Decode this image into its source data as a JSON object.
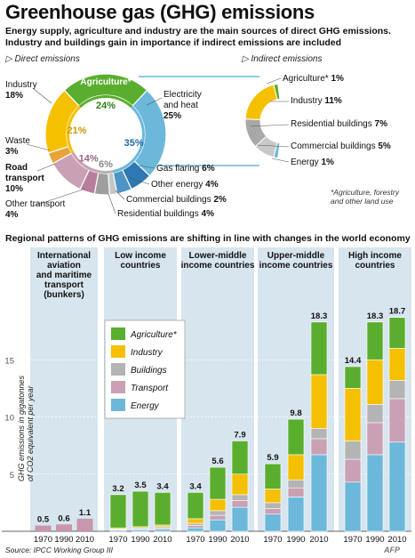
{
  "title": "Greenhouse gas (GHG) emissions",
  "subtitle_line1": "Energy supply, agriculture and industry are the main sources of direct GHG emissions.",
  "subtitle_line2": "Industry and buildings gain in importance if indirect emissions are included",
  "direct_heading": "Direct emissions",
  "indirect_heading": "Indirect emissions",
  "direct_labels": {
    "industry": {
      "name": "Industry",
      "pct": "18%"
    },
    "waste": {
      "name": "Waste",
      "pct": "3%"
    },
    "road": {
      "name": "Road",
      "name2": "transport",
      "pct": "10%"
    },
    "other_transport": {
      "name": "Other transport",
      "pct": "4%"
    },
    "agriculture": "Agriculture*",
    "electricity": {
      "name": "Electricity",
      "name2": "and heat",
      "pct": "25%"
    },
    "gas_flaring": {
      "name": "Gas flaring",
      "pct": "6%"
    },
    "other_energy": {
      "name": "Other energy",
      "pct": "4%"
    },
    "commercial": {
      "name": "Commercial buildings",
      "pct": "2%"
    },
    "residential": {
      "name": "Residential buildings",
      "pct": "4%"
    }
  },
  "ring_labels": {
    "agri": "24%",
    "industry": "21%",
    "transport": "14%",
    "buildings": "6%",
    "energy": "35%"
  },
  "indirect_labels": {
    "agriculture": {
      "name": "Agriculture*",
      "pct": "1%"
    },
    "industry": {
      "name": "Industry",
      "pct": "11%"
    },
    "residential": {
      "name": "Residential buildings",
      "pct": "7%"
    },
    "commercial": {
      "name": "Commercial buildings",
      "pct": "5%"
    },
    "energy": {
      "name": "Energy",
      "pct": "1%"
    }
  },
  "footnote": "*Agriculture, forestry and other land use",
  "section2_title": "Regional patterns of GHG emissions are shifting in line with changes in the world economy",
  "ylabel_line1": "GHG emissions in gigatonnes",
  "ylabel_line2": "of CO2 equivalent per year",
  "source": "Source: IPCC Working Group III",
  "afp": "AFP",
  "colors": {
    "agriculture": "#5aae2e",
    "industry": "#f5c000",
    "buildings": "#b4b4b4",
    "transport": "#c9a0b4",
    "energy": "#6bb8db",
    "electricity": "#6bb8db",
    "energy_dark": "#2e78b4",
    "waste": "#e8a43a",
    "panel_bg": "#d7e5ee",
    "total_bar": "#c896ad"
  },
  "chart_data": [
    {
      "type": "pie",
      "title": "Direct emissions",
      "slices": [
        {
          "label": "Agriculture*",
          "value": 24
        },
        {
          "label": "Electricity and heat",
          "value": 25
        },
        {
          "label": "Gas flaring",
          "value": 6
        },
        {
          "label": "Other energy",
          "value": 4
        },
        {
          "label": "Commercial buildings",
          "value": 2
        },
        {
          "label": "Residential buildings",
          "value": 4
        },
        {
          "label": "Other transport",
          "value": 4
        },
        {
          "label": "Road transport",
          "value": 10
        },
        {
          "label": "Waste",
          "value": 3
        },
        {
          "label": "Industry",
          "value": 18
        }
      ],
      "groups": [
        {
          "label": "Agriculture",
          "value": 24
        },
        {
          "label": "Energy",
          "value": 35
        },
        {
          "label": "Buildings",
          "value": 6
        },
        {
          "label": "Transport",
          "value": 14
        },
        {
          "label": "Industry",
          "value": 21
        }
      ]
    },
    {
      "type": "pie",
      "title": "Indirect emissions",
      "slices": [
        {
          "label": "Agriculture*",
          "value": 1
        },
        {
          "label": "Industry",
          "value": 11
        },
        {
          "label": "Residential buildings",
          "value": 7
        },
        {
          "label": "Commercial buildings",
          "value": 5
        },
        {
          "label": "Energy",
          "value": 1
        }
      ]
    },
    {
      "type": "bar",
      "stacked": true,
      "ylabel": "GHG emissions in gigatonnes of CO2 equivalent per year",
      "ylim": [
        0,
        20
      ],
      "yticks": [
        5,
        10,
        15
      ],
      "legend": [
        "Agriculture*",
        "Industry",
        "Buildings",
        "Transport",
        "Energy"
      ],
      "legend_position": "left",
      "groups": [
        {
          "name": "International aviation and maritime transport (bunkers)",
          "name_lines": [
            "International",
            "aviation",
            "and maritime",
            "transport",
            "(bunkers)"
          ],
          "years": [
            "1970",
            "1990",
            "2010"
          ],
          "totals": [
            0.5,
            0.6,
            1.1
          ],
          "stacks": [
            {
              "Transport": 0.5
            },
            {
              "Transport": 0.6
            },
            {
              "Transport": 1.1
            }
          ]
        },
        {
          "name": "Low income countries",
          "name_lines": [
            "Low income",
            "countries"
          ],
          "years": [
            "1970",
            "1990",
            "2010"
          ],
          "totals": [
            3.2,
            3.5,
            3.4
          ],
          "stacks": [
            {
              "Energy": 0.1,
              "Transport": 0.05,
              "Buildings": 0.05,
              "Industry": 0.1,
              "Agriculture*": 2.9
            },
            {
              "Energy": 0.15,
              "Transport": 0.05,
              "Buildings": 0.1,
              "Industry": 0.1,
              "Agriculture*": 3.1
            },
            {
              "Energy": 0.2,
              "Transport": 0.1,
              "Buildings": 0.1,
              "Industry": 0.15,
              "Agriculture*": 2.85
            }
          ]
        },
        {
          "name": "Lower-middle income countries",
          "name_lines": [
            "Lower-middle",
            "income countries"
          ],
          "years": [
            "1970",
            "1990",
            "2010"
          ],
          "totals": [
            3.4,
            5.6,
            7.9
          ],
          "stacks": [
            {
              "Energy": 0.3,
              "Transport": 0.2,
              "Buildings": 0.2,
              "Industry": 0.4,
              "Agriculture*": 2.3
            },
            {
              "Energy": 1.0,
              "Transport": 0.4,
              "Buildings": 0.4,
              "Industry": 1.0,
              "Agriculture*": 2.8
            },
            {
              "Energy": 2.1,
              "Transport": 0.6,
              "Buildings": 0.5,
              "Industry": 1.8,
              "Agriculture*": 2.9
            }
          ]
        },
        {
          "name": "Upper-middle income countries",
          "name_lines": [
            "Upper-middle",
            "income countries"
          ],
          "years": [
            "1970",
            "1990",
            "2010"
          ],
          "totals": [
            5.9,
            9.8,
            18.3
          ],
          "stacks": [
            {
              "Energy": 1.5,
              "Transport": 0.5,
              "Buildings": 0.5,
              "Industry": 1.2,
              "Agriculture*": 2.2
            },
            {
              "Energy": 3.0,
              "Transport": 0.8,
              "Buildings": 0.7,
              "Industry": 2.2,
              "Agriculture*": 3.1
            },
            {
              "Energy": 6.7,
              "Transport": 1.4,
              "Buildings": 0.9,
              "Industry": 4.7,
              "Agriculture*": 4.6
            }
          ]
        },
        {
          "name": "High income countries",
          "name_lines": [
            "High income",
            "countries"
          ],
          "years": [
            "1970",
            "1990",
            "2010"
          ],
          "totals": [
            14.4,
            18.3,
            18.7
          ],
          "stacks": [
            {
              "Energy": 4.3,
              "Transport": 2.0,
              "Buildings": 1.6,
              "Industry": 4.6,
              "Agriculture*": 1.9
            },
            {
              "Energy": 6.7,
              "Transport": 2.8,
              "Buildings": 1.6,
              "Industry": 3.9,
              "Agriculture*": 3.3
            },
            {
              "Energy": 7.8,
              "Transport": 3.8,
              "Buildings": 1.6,
              "Industry": 2.8,
              "Agriculture*": 2.7
            }
          ]
        }
      ]
    }
  ]
}
